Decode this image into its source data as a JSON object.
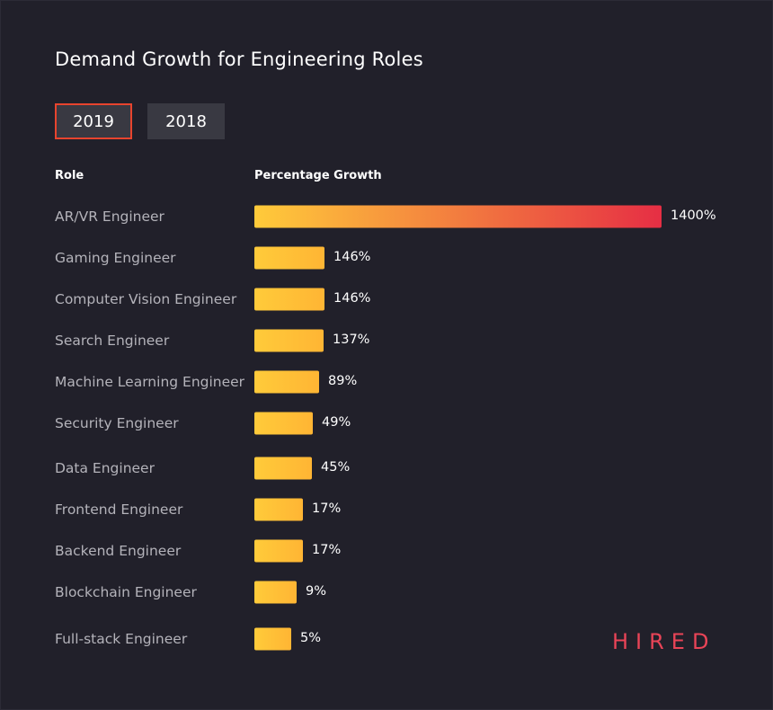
{
  "chart_data": {
    "type": "bar",
    "orientation": "horizontal",
    "title": "Demand Growth for Engineering Roles",
    "xlabel": "Percentage Growth",
    "ylabel": "Role",
    "categories": [
      "AR/VR Engineer",
      "Gaming Engineer",
      "Computer Vision Engineer",
      "Search Engineer",
      "Machine Learning Engineer",
      "Security Engineer",
      "Data Engineer",
      "Frontend Engineer",
      "Backend Engineer",
      "Blockchain Engineer",
      "Full-stack Engineer"
    ],
    "values": [
      1400,
      146,
      146,
      137,
      89,
      49,
      45,
      17,
      17,
      9,
      5
    ],
    "value_labels": [
      "1400%",
      "146%",
      "146%",
      "137%",
      "89%",
      "49%",
      "45%",
      "17%",
      "17%",
      "9%",
      "5%"
    ],
    "unit": "%",
    "grid": false,
    "legend": "none"
  },
  "tabs": [
    {
      "label": "2019",
      "active": true
    },
    {
      "label": "2018",
      "active": false
    }
  ],
  "columns": {
    "role": "Role",
    "growth": "Percentage Growth"
  },
  "colors": {
    "bar_start": "#ffcb3a",
    "bar_end": "#e62e44",
    "active_tab_border": "#e8442e",
    "brand": "#e94457"
  },
  "brand": "HIRED"
}
